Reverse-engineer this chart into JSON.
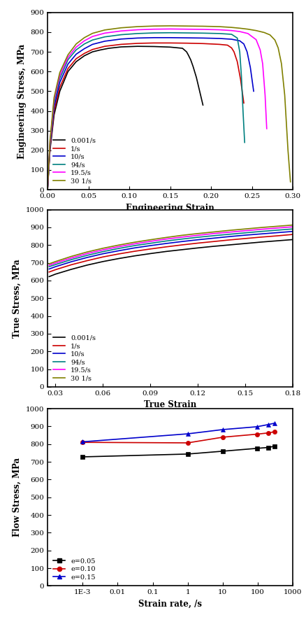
{
  "panel1": {
    "xlabel": "Engineering Strain",
    "ylabel": "Engineering Stress, MPa",
    "xlim": [
      0.0,
      0.3
    ],
    "ylim": [
      0,
      900
    ],
    "xticks": [
      0.0,
      0.05,
      0.1,
      0.15,
      0.2,
      0.25,
      0.3
    ],
    "yticks": [
      0,
      100,
      200,
      300,
      400,
      500,
      600,
      700,
      800,
      900
    ],
    "curves": [
      {
        "label": "0.001/s",
        "color": "#000000",
        "x": [
          0.0,
          0.003,
          0.008,
          0.015,
          0.025,
          0.035,
          0.045,
          0.055,
          0.065,
          0.075,
          0.09,
          0.11,
          0.13,
          0.15,
          0.165,
          0.17,
          0.172,
          0.175,
          0.178,
          0.182,
          0.186,
          0.19
        ],
        "y": [
          0,
          200,
          380,
          500,
          600,
          650,
          680,
          700,
          710,
          718,
          725,
          728,
          727,
          724,
          718,
          700,
          685,
          660,
          625,
          570,
          500,
          430
        ]
      },
      {
        "label": "1/s",
        "color": "#cc0000",
        "x": [
          0.0,
          0.003,
          0.008,
          0.015,
          0.025,
          0.035,
          0.045,
          0.055,
          0.07,
          0.09,
          0.11,
          0.13,
          0.15,
          0.17,
          0.19,
          0.21,
          0.22,
          0.225,
          0.228,
          0.232,
          0.236,
          0.24
        ],
        "y": [
          0,
          210,
          400,
          520,
          615,
          665,
          692,
          712,
          728,
          738,
          743,
          745,
          745,
          744,
          742,
          738,
          734,
          720,
          700,
          650,
          560,
          440
        ]
      },
      {
        "label": "10/s",
        "color": "#0000cc",
        "x": [
          0.0,
          0.003,
          0.008,
          0.015,
          0.025,
          0.035,
          0.045,
          0.055,
          0.07,
          0.09,
          0.11,
          0.13,
          0.15,
          0.17,
          0.19,
          0.21,
          0.225,
          0.235,
          0.24,
          0.244,
          0.248,
          0.252
        ],
        "y": [
          0,
          220,
          420,
          545,
          638,
          688,
          716,
          738,
          754,
          765,
          770,
          772,
          772,
          771,
          770,
          768,
          764,
          756,
          740,
          700,
          620,
          500
        ]
      },
      {
        "label": "94/s",
        "color": "#008080",
        "x": [
          0.0,
          0.003,
          0.008,
          0.015,
          0.025,
          0.035,
          0.045,
          0.055,
          0.07,
          0.09,
          0.11,
          0.13,
          0.15,
          0.17,
          0.19,
          0.21,
          0.225,
          0.232,
          0.235,
          0.237,
          0.239,
          0.241
        ],
        "y": [
          0,
          230,
          440,
          565,
          660,
          710,
          740,
          760,
          776,
          787,
          793,
          796,
          797,
          796,
          795,
          793,
          789,
          770,
          700,
          580,
          400,
          240
        ]
      },
      {
        "label": "19.5/s",
        "color": "#ff00ff",
        "x": [
          0.0,
          0.003,
          0.008,
          0.015,
          0.025,
          0.035,
          0.045,
          0.055,
          0.07,
          0.09,
          0.11,
          0.13,
          0.15,
          0.17,
          0.19,
          0.21,
          0.225,
          0.235,
          0.245,
          0.255,
          0.26,
          0.263,
          0.266,
          0.268
        ],
        "y": [
          0,
          240,
          455,
          580,
          672,
          724,
          756,
          778,
          795,
          806,
          812,
          815,
          816,
          815,
          814,
          812,
          808,
          803,
          793,
          762,
          710,
          640,
          480,
          310
        ]
      },
      {
        "label": "30 1/s",
        "color": "#808000",
        "x": [
          0.0,
          0.003,
          0.008,
          0.015,
          0.025,
          0.035,
          0.045,
          0.055,
          0.07,
          0.09,
          0.11,
          0.13,
          0.15,
          0.17,
          0.19,
          0.21,
          0.225,
          0.235,
          0.245,
          0.255,
          0.265,
          0.272,
          0.278,
          0.282,
          0.286,
          0.29,
          0.294,
          0.297
        ],
        "y": [
          0,
          250,
          468,
          595,
          685,
          740,
          772,
          794,
          811,
          822,
          828,
          831,
          832,
          831,
          830,
          828,
          824,
          820,
          815,
          808,
          798,
          786,
          760,
          720,
          640,
          480,
          200,
          40
        ]
      }
    ]
  },
  "panel2": {
    "xlabel": "True Strain",
    "ylabel": "True Stress, MPa",
    "xlim": [
      0.025,
      0.18
    ],
    "ylim": [
      0,
      1000
    ],
    "xticks": [
      0.03,
      0.06,
      0.09,
      0.12,
      0.15,
      0.18
    ],
    "yticks": [
      0,
      100,
      200,
      300,
      400,
      500,
      600,
      700,
      800,
      900,
      1000
    ],
    "curves": [
      {
        "label": "0.001/s",
        "color": "#000000",
        "x": [
          0.026,
          0.03,
          0.04,
          0.05,
          0.06,
          0.07,
          0.08,
          0.09,
          0.1,
          0.11,
          0.12,
          0.13,
          0.14,
          0.15,
          0.16,
          0.17,
          0.18
        ],
        "y": [
          622,
          636,
          663,
          687,
          707,
          724,
          739,
          752,
          764,
          774,
          784,
          793,
          801,
          809,
          817,
          824,
          831
        ]
      },
      {
        "label": "1/s",
        "color": "#cc0000",
        "x": [
          0.026,
          0.03,
          0.04,
          0.05,
          0.06,
          0.07,
          0.08,
          0.09,
          0.1,
          0.11,
          0.12,
          0.13,
          0.14,
          0.15,
          0.16,
          0.17,
          0.18
        ],
        "y": [
          648,
          661,
          689,
          712,
          733,
          750,
          765,
          778,
          790,
          801,
          811,
          820,
          829,
          837,
          845,
          852,
          860
        ]
      },
      {
        "label": "10/s",
        "color": "#0000cc",
        "x": [
          0.026,
          0.03,
          0.04,
          0.05,
          0.06,
          0.07,
          0.08,
          0.09,
          0.1,
          0.11,
          0.12,
          0.13,
          0.14,
          0.15,
          0.16,
          0.17,
          0.18
        ],
        "y": [
          665,
          678,
          706,
          730,
          751,
          768,
          784,
          797,
          809,
          820,
          830,
          839,
          848,
          856,
          863,
          870,
          877
        ]
      },
      {
        "label": "94/s",
        "color": "#008080",
        "x": [
          0.026,
          0.03,
          0.04,
          0.05,
          0.06,
          0.07,
          0.08,
          0.09,
          0.1,
          0.11,
          0.12,
          0.13,
          0.14,
          0.15,
          0.16,
          0.17,
          0.18
        ],
        "y": [
          678,
          690,
          718,
          742,
          763,
          781,
          797,
          810,
          823,
          834,
          844,
          853,
          861,
          869,
          877,
          884,
          891
        ]
      },
      {
        "label": "19.5/s",
        "color": "#ff00ff",
        "x": [
          0.026,
          0.03,
          0.04,
          0.05,
          0.06,
          0.07,
          0.08,
          0.09,
          0.1,
          0.11,
          0.12,
          0.13,
          0.14,
          0.15,
          0.16,
          0.17,
          0.18
        ],
        "y": [
          686,
          699,
          727,
          752,
          773,
          791,
          807,
          821,
          834,
          845,
          855,
          865,
          873,
          881,
          889,
          896,
          903
        ]
      },
      {
        "label": "30 1/s",
        "color": "#808000",
        "x": [
          0.026,
          0.03,
          0.04,
          0.05,
          0.06,
          0.07,
          0.08,
          0.09,
          0.1,
          0.11,
          0.12,
          0.13,
          0.14,
          0.15,
          0.16,
          0.17,
          0.18
        ],
        "y": [
          694,
          707,
          736,
          761,
          782,
          800,
          816,
          830,
          843,
          855,
          865,
          874,
          883,
          891,
          899,
          906,
          913
        ]
      }
    ]
  },
  "panel3": {
    "xlabel": "Strain rate, /s",
    "ylabel": "Flow Stress, MPa",
    "ylim": [
      0,
      1000
    ],
    "yticks": [
      0,
      100,
      200,
      300,
      400,
      500,
      600,
      700,
      800,
      900,
      1000
    ],
    "curves": [
      {
        "label": "e=0.05",
        "color": "#000000",
        "marker": "s",
        "x": [
          0.001,
          1,
          10,
          94,
          195,
          301
        ],
        "y": [
          728,
          744,
          760,
          776,
          781,
          788
        ]
      },
      {
        "label": "e=0.10",
        "color": "#cc0000",
        "marker": "o",
        "x": [
          0.001,
          1,
          10,
          94,
          195,
          301
        ],
        "y": [
          810,
          807,
          839,
          856,
          863,
          870
        ]
      },
      {
        "label": "e=0.15",
        "color": "#0000cc",
        "marker": "^",
        "x": [
          0.001,
          1,
          10,
          94,
          195,
          301
        ],
        "y": [
          813,
          858,
          882,
          898,
          910,
          918
        ]
      }
    ]
  },
  "bg_color": "#ffffff",
  "font_family": "Times New Roman"
}
